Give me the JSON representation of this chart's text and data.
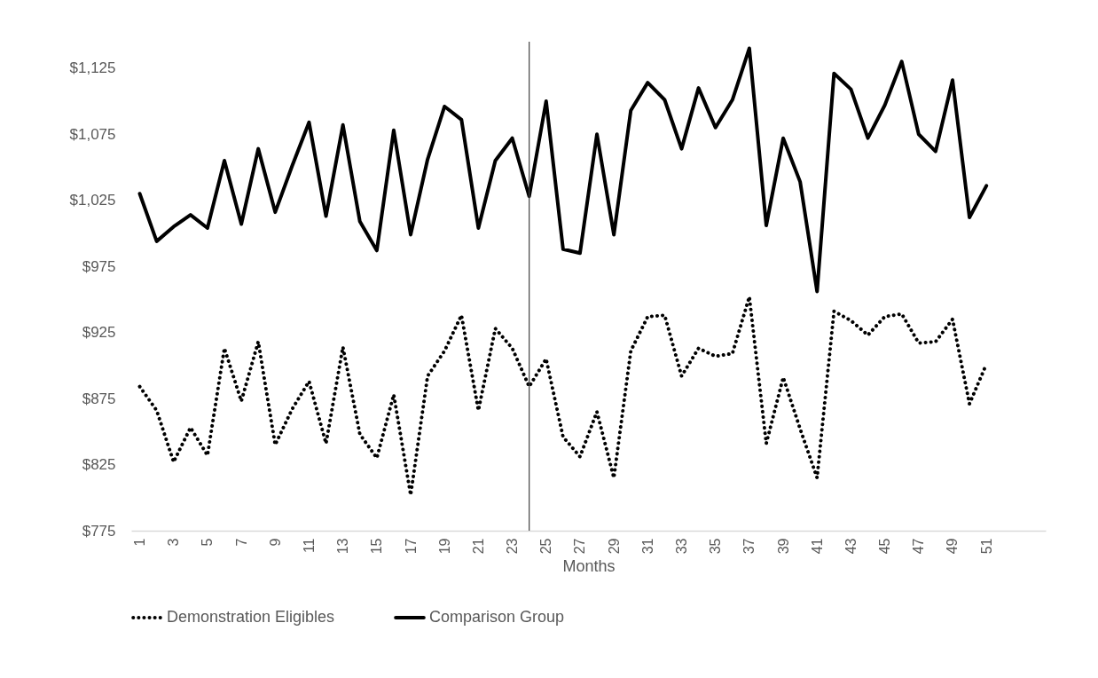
{
  "chart_data": {
    "type": "line",
    "xlabel": "Months",
    "x": [
      1,
      2,
      3,
      4,
      5,
      6,
      7,
      8,
      9,
      10,
      11,
      12,
      13,
      14,
      15,
      16,
      17,
      18,
      19,
      20,
      21,
      22,
      23,
      24,
      25,
      26,
      27,
      28,
      29,
      30,
      31,
      32,
      33,
      34,
      35,
      36,
      37,
      38,
      39,
      40,
      41,
      42,
      43,
      44,
      45,
      46,
      47,
      48,
      49,
      50,
      51
    ],
    "xlim": [
      0.5,
      54.5
    ],
    "xticks": [
      1,
      3,
      5,
      7,
      9,
      11,
      13,
      15,
      17,
      19,
      21,
      23,
      25,
      27,
      29,
      31,
      33,
      35,
      37,
      39,
      41,
      43,
      45,
      47,
      49,
      51
    ],
    "ylim": [
      775,
      1145
    ],
    "yticks": [
      {
        "value": 775,
        "label": "$775"
      },
      {
        "value": 825,
        "label": "$825"
      },
      {
        "value": 875,
        "label": "$875"
      },
      {
        "value": 925,
        "label": "$925"
      },
      {
        "value": 975,
        "label": "$975"
      },
      {
        "value": 1025,
        "label": "$1,025"
      },
      {
        "value": 1075,
        "label": "$1,075"
      },
      {
        "value": 1125,
        "label": "$1,125"
      }
    ],
    "grid": false,
    "legend": "bottom",
    "ref_lines": [
      {
        "axis": "x",
        "value": 24,
        "color": "#404040"
      }
    ],
    "series": [
      {
        "name": "Demonstration Eligibles",
        "color": "#000000",
        "line_style": "dotted",
        "values": [
          884,
          866,
          827,
          853,
          832,
          913,
          873,
          918,
          840,
          867,
          888,
          841,
          914,
          848,
          830,
          878,
          802,
          892,
          911,
          938,
          866,
          928,
          913,
          884,
          905,
          846,
          831,
          865,
          815,
          911,
          937,
          938,
          892,
          913,
          907,
          909,
          952,
          841,
          891,
          852,
          815,
          941,
          934,
          923,
          937,
          939,
          917,
          918,
          935,
          871,
          901
        ]
      },
      {
        "name": "Comparison Group",
        "color": "#000000",
        "line_style": "solid",
        "values": [
          1030,
          994,
          1005,
          1014,
          1004,
          1055,
          1007,
          1064,
          1016,
          1051,
          1084,
          1013,
          1082,
          1009,
          987,
          1078,
          999,
          1056,
          1096,
          1086,
          1004,
          1055,
          1072,
          1028,
          1100,
          988,
          985,
          1075,
          999,
          1093,
          1114,
          1101,
          1064,
          1110,
          1080,
          1101,
          1140,
          1006,
          1072,
          1039,
          956,
          1121,
          1109,
          1072,
          1097,
          1130,
          1075,
          1062,
          1116,
          1012,
          1036
        ]
      }
    ]
  }
}
